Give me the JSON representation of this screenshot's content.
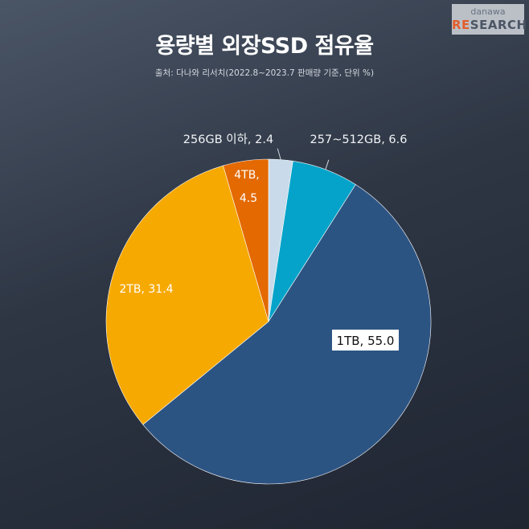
{
  "logo": {
    "line1": "danawa",
    "line2_hi": "RE",
    "line2_rest": "SEARCH"
  },
  "title": "용량별 외장SSD 점유율",
  "subtitle": "출처: 다나와 리서치(2022.8~2023.7 판매량 기준, 단위 %)",
  "colors": {
    "256GB 이하": "#c9dbea",
    "257~512GB": "#05a3c9",
    "1TB": "#2c5483",
    "2TB": "#f6a900",
    "4TB": "#e36900"
  },
  "chart_data": {
    "type": "pie",
    "title": "용량별 외장SSD 점유율",
    "unit": "%",
    "start_angle_deg": 0,
    "direction": "clockwise",
    "slices": [
      {
        "label": "256GB 이하",
        "value": 2.4,
        "text": "256GB 이하, 2.4"
      },
      {
        "label": "257~512GB",
        "value": 6.6,
        "text": "257~512GB, 6.6"
      },
      {
        "label": "1TB",
        "value": 55.0,
        "text": "1TB, 55.0"
      },
      {
        "label": "2TB",
        "value": 31.4,
        "text": "2TB, 31.4"
      },
      {
        "label": "4TB",
        "value": 4.5,
        "text_line1": "4TB,",
        "text_line2": "4.5"
      }
    ]
  }
}
